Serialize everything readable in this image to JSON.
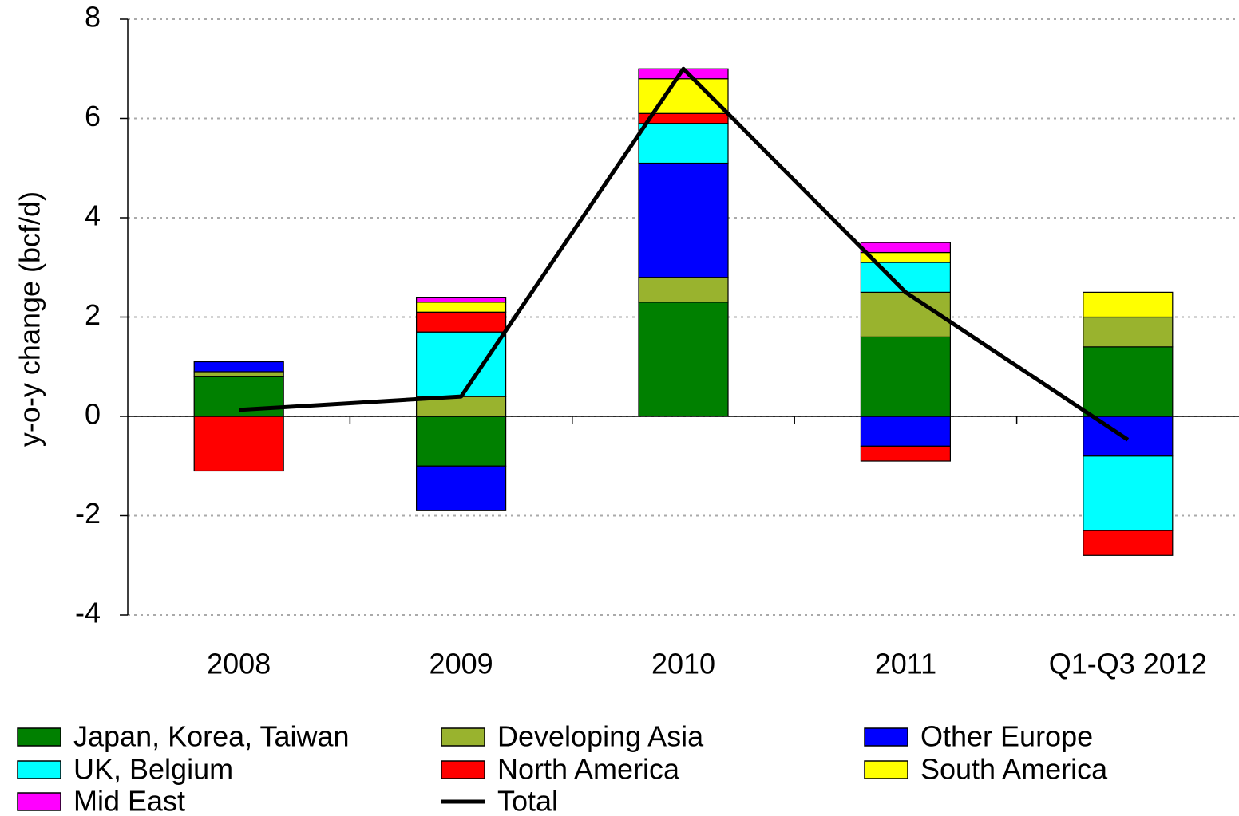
{
  "chart_data": {
    "type": "bar",
    "stacked": true,
    "y_label": "y-o-y change (bcf/d)",
    "categories": [
      "2008",
      "2009",
      "2010",
      "2011",
      "Q1-Q3 2012"
    ],
    "series": [
      {
        "name": "Japan, Korea, Taiwan",
        "color": "#008000",
        "values": [
          0.8,
          -1.0,
          2.3,
          1.6,
          1.4
        ]
      },
      {
        "name": "Developing Asia",
        "color": "#99b32e",
        "values": [
          0.1,
          0.4,
          0.5,
          0.9,
          0.6
        ]
      },
      {
        "name": "Other Europe",
        "color": "#0000ff",
        "values": [
          0.2,
          -0.9,
          2.3,
          -0.6,
          -0.8
        ]
      },
      {
        "name": "UK, Belgium",
        "color": "#00ffff",
        "values": [
          0,
          1.3,
          0.8,
          0.6,
          -1.5
        ]
      },
      {
        "name": "North America",
        "color": "#ff0000",
        "values": [
          -1.1,
          0.4,
          0.2,
          -0.3,
          -0.5
        ]
      },
      {
        "name": "South America",
        "color": "#ffff00",
        "values": [
          0,
          0.2,
          0.7,
          0.2,
          0.5
        ]
      },
      {
        "name": "Mid East",
        "color": "#ff00ff",
        "values": [
          0,
          0.1,
          0.2,
          0.2,
          0
        ]
      }
    ],
    "line": {
      "name": "Total",
      "color": "#000000",
      "values": [
        0.13,
        0.4,
        7.0,
        2.5,
        -0.47
      ]
    },
    "ylim": [
      -4,
      8
    ],
    "yticks": [
      -4,
      -2,
      0,
      2,
      4,
      6,
      8
    ],
    "grid": true,
    "legend": "bottom"
  }
}
